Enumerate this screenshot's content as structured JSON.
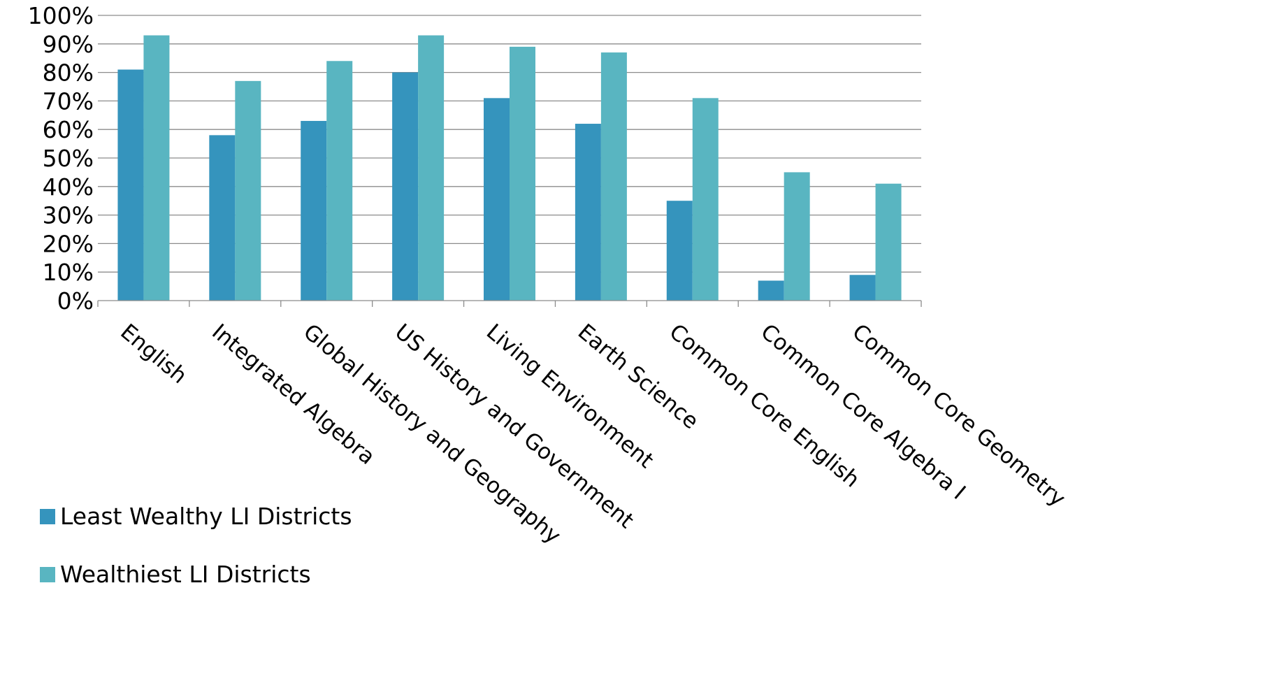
{
  "chart_data": {
    "type": "bar",
    "title": "",
    "xlabel": "",
    "ylabel": "",
    "ylim": [
      0,
      100
    ],
    "y_ticks": [
      "0%",
      "10%",
      "20%",
      "30%",
      "40%",
      "50%",
      "60%",
      "70%",
      "80%",
      "90%",
      "100%"
    ],
    "grid": true,
    "legend_position": "bottom-left",
    "categories": [
      "English",
      "Integrated Algebra",
      "Global History and Geography",
      "US History and Government",
      "Living Environment",
      "Earth Science",
      "Common Core English",
      "Common Core Algebra I",
      "Common Core Geometry"
    ],
    "series": [
      {
        "name": "Least Wealthy LI Districts",
        "color": "#3594bd",
        "values": [
          81,
          58,
          63,
          80,
          71,
          62,
          35,
          7,
          9
        ]
      },
      {
        "name": "Wealthiest LI Districts",
        "color": "#59b5c1",
        "values": [
          93,
          77,
          84,
          93,
          89,
          87,
          71,
          45,
          41
        ]
      }
    ]
  }
}
